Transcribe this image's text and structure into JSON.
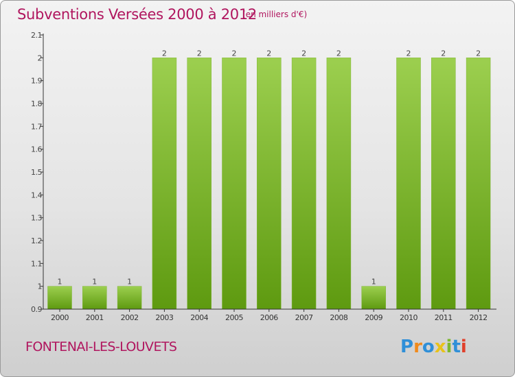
{
  "header": {
    "title": "Subventions Versées 2000 à 2012",
    "unit": "(en milliers d'€)"
  },
  "footer": {
    "commune": "FONTENAI-LES-LOUVETS",
    "brand": "Proxiti",
    "brand_letters": [
      {
        "ch": "P",
        "color": "#2f8fd8"
      },
      {
        "ch": "r",
        "color": "#f08a1c"
      },
      {
        "ch": "o",
        "color": "#2f8fd8"
      },
      {
        "ch": "x",
        "color": "#e8c21a"
      },
      {
        "ch": "i",
        "color": "#7cb82f"
      },
      {
        "ch": "t",
        "color": "#2f8fd8"
      },
      {
        "ch": "i",
        "color": "#e0402b"
      }
    ]
  },
  "colors": {
    "title": "#b0155e",
    "bar_top": "#9ccf4f",
    "bar_bottom": "#5e9a10",
    "axis": "#333333"
  },
  "chart_data": {
    "type": "bar",
    "categories": [
      "2000",
      "2001",
      "2002",
      "2003",
      "2004",
      "2005",
      "2006",
      "2007",
      "2008",
      "2009",
      "2010",
      "2011",
      "2012"
    ],
    "values": [
      1,
      1,
      1,
      2,
      2,
      2,
      2,
      2,
      2,
      1,
      2,
      2,
      2
    ],
    "data_labels": [
      "1",
      "1",
      "1",
      "2",
      "2",
      "2",
      "2",
      "2",
      "2",
      "1",
      "2",
      "2",
      "2"
    ],
    "ylim": [
      0.9,
      2.1
    ],
    "yticks": [
      0.9,
      1,
      1.1,
      1.2,
      1.3,
      1.4,
      1.5,
      1.6,
      1.7,
      1.8,
      1.9,
      2,
      2.1
    ],
    "ytick_labels": [
      "0.9",
      "1",
      "1.1",
      "1.2",
      "1.3",
      "1.4",
      "1.5",
      "1.6",
      "1.7",
      "1.8",
      "1.9",
      "2",
      "2.1"
    ],
    "grid": false,
    "legend": "none"
  }
}
